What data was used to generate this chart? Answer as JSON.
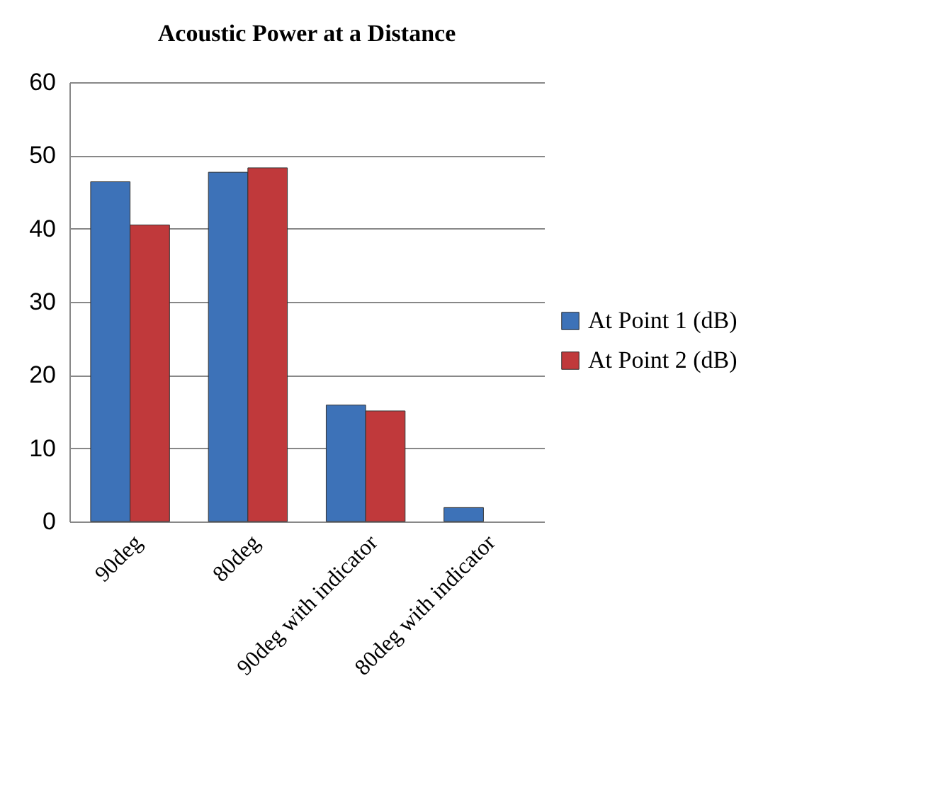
{
  "chart_data": {
    "type": "bar",
    "title": "Acoustic Power at a Distance",
    "categories": [
      "90deg",
      "80deg",
      "90deg with indicator",
      "80deg with indicator"
    ],
    "series": [
      {
        "name": "At Point 1 (dB)",
        "color": "#3d72b8",
        "values": [
          46.4,
          47.7,
          15.9,
          1.9
        ]
      },
      {
        "name": "At Point 2 (dB)",
        "color": "#c0393b",
        "values": [
          40.5,
          48.3,
          15.1,
          null
        ]
      }
    ],
    "ylim": [
      0,
      60
    ],
    "yticks": [
      0,
      10,
      20,
      30,
      40,
      50,
      60
    ],
    "grid": "y",
    "legend": "right"
  }
}
